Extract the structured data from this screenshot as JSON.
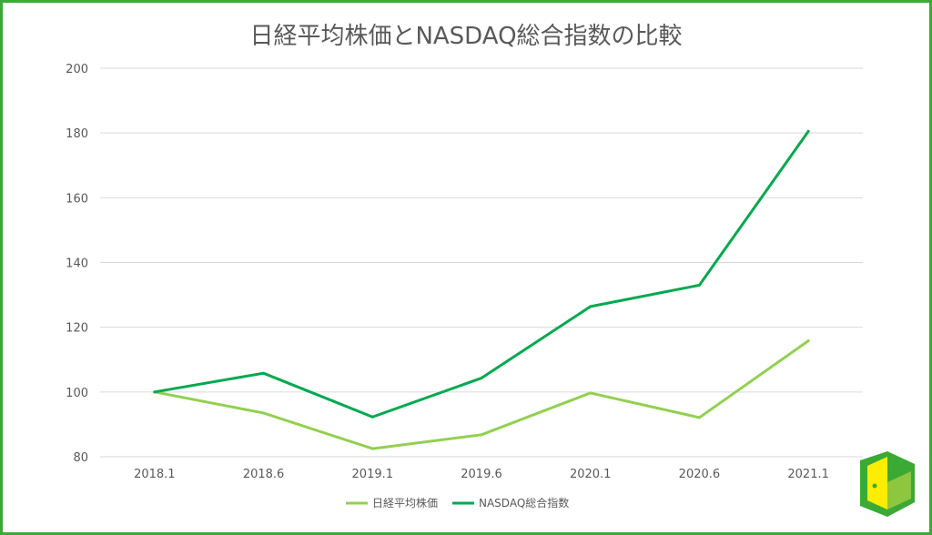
{
  "chart_data": {
    "type": "line",
    "title": "日経平均株価とNASDAQ総合指数の比較",
    "xlabel": "",
    "ylabel": "",
    "categories": [
      "2018.1",
      "2018.6",
      "2019.1",
      "2019.6",
      "2020.1",
      "2020.6",
      "2021.1"
    ],
    "ylim": [
      80,
      200
    ],
    "yticks": [
      80,
      100,
      120,
      140,
      160,
      180,
      200
    ],
    "grid": true,
    "legend_position": "bottom",
    "series": [
      {
        "name": "日経平均株価",
        "color": "#92d050",
        "values": [
          100,
          93.5,
          82.5,
          86.8,
          99.7,
          92.1,
          115.8
        ]
      },
      {
        "name": "NASDAQ総合指数",
        "color": "#00a84f",
        "values": [
          100,
          105.8,
          92.3,
          104.3,
          126.4,
          133.0,
          180.5
        ]
      }
    ]
  },
  "logo": {
    "icon": "door-logo-icon",
    "colors": [
      "#3aaa35",
      "#ffed00",
      "#8dc63f"
    ]
  }
}
